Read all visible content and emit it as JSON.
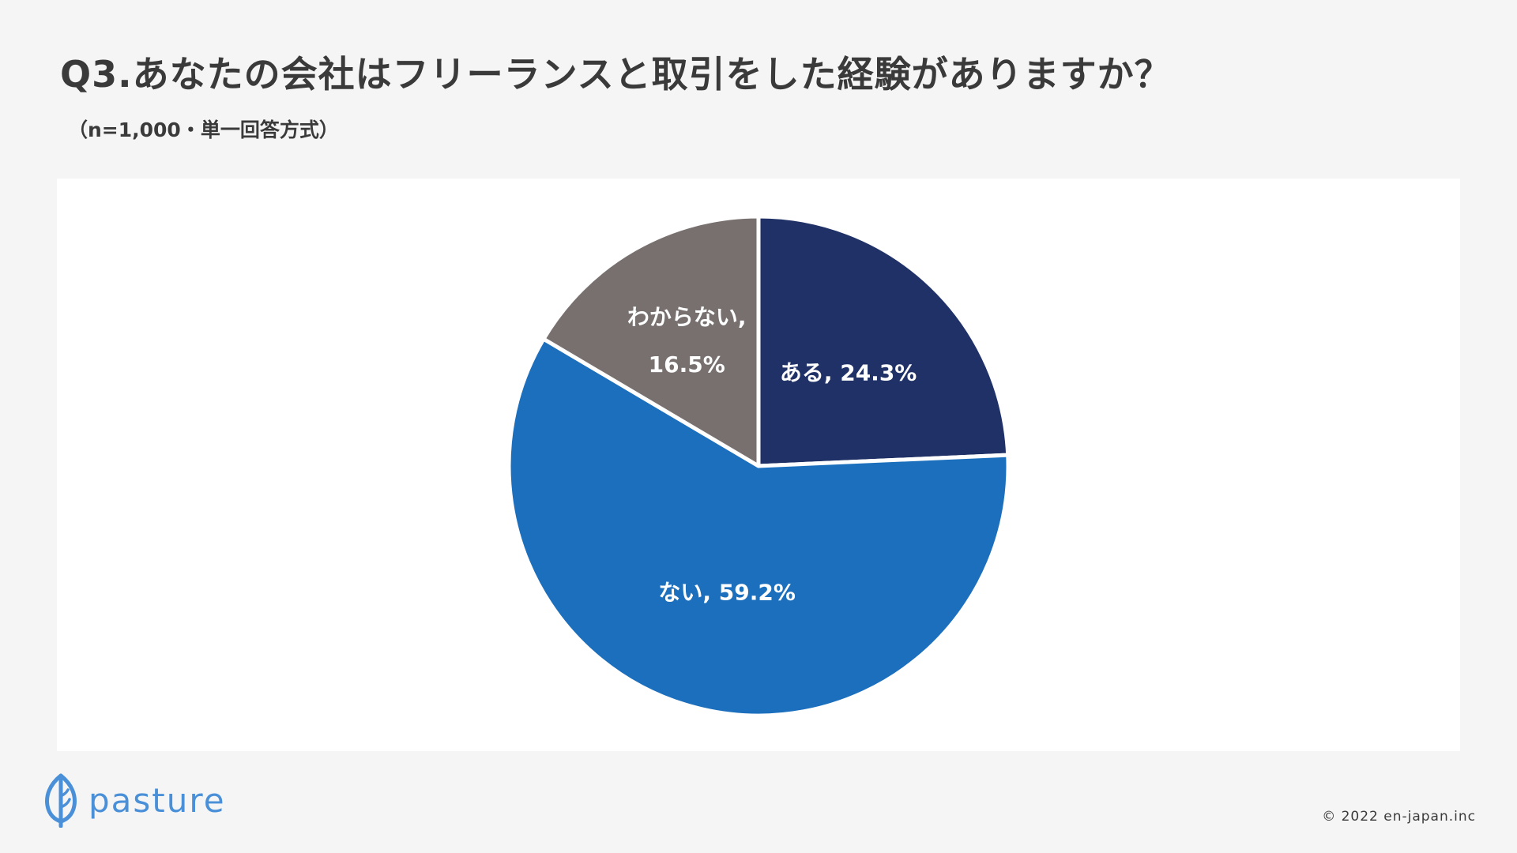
{
  "header": {
    "title": "Q3.あなたの会社はフリーランスと取引をした経験がありますか？",
    "subtitle": "（n=1,000・単一回答方式）"
  },
  "chart_data": {
    "type": "pie",
    "slices": [
      {
        "name": "ある",
        "value": 24.3,
        "label_line1": "ある, 24.3%",
        "label_line2": "",
        "color": "#1f3166"
      },
      {
        "name": "ない",
        "value": 59.2,
        "label_line1": "ない, 59.2%",
        "label_line2": "",
        "color": "#1b6fbd"
      },
      {
        "name": "わからない",
        "value": 16.5,
        "label_line1": "わからない,",
        "label_line2": "16.5%",
        "color": "#77706f"
      }
    ],
    "start_angle_deg": 0,
    "direction": "clockwise",
    "legend": "none"
  },
  "brand": {
    "logo_text": "pasture",
    "logo_color": "#4a90d9",
    "logo_icon": "leaf-icon"
  },
  "footer": {
    "copyright": "© 2022 en-japan.inc"
  }
}
